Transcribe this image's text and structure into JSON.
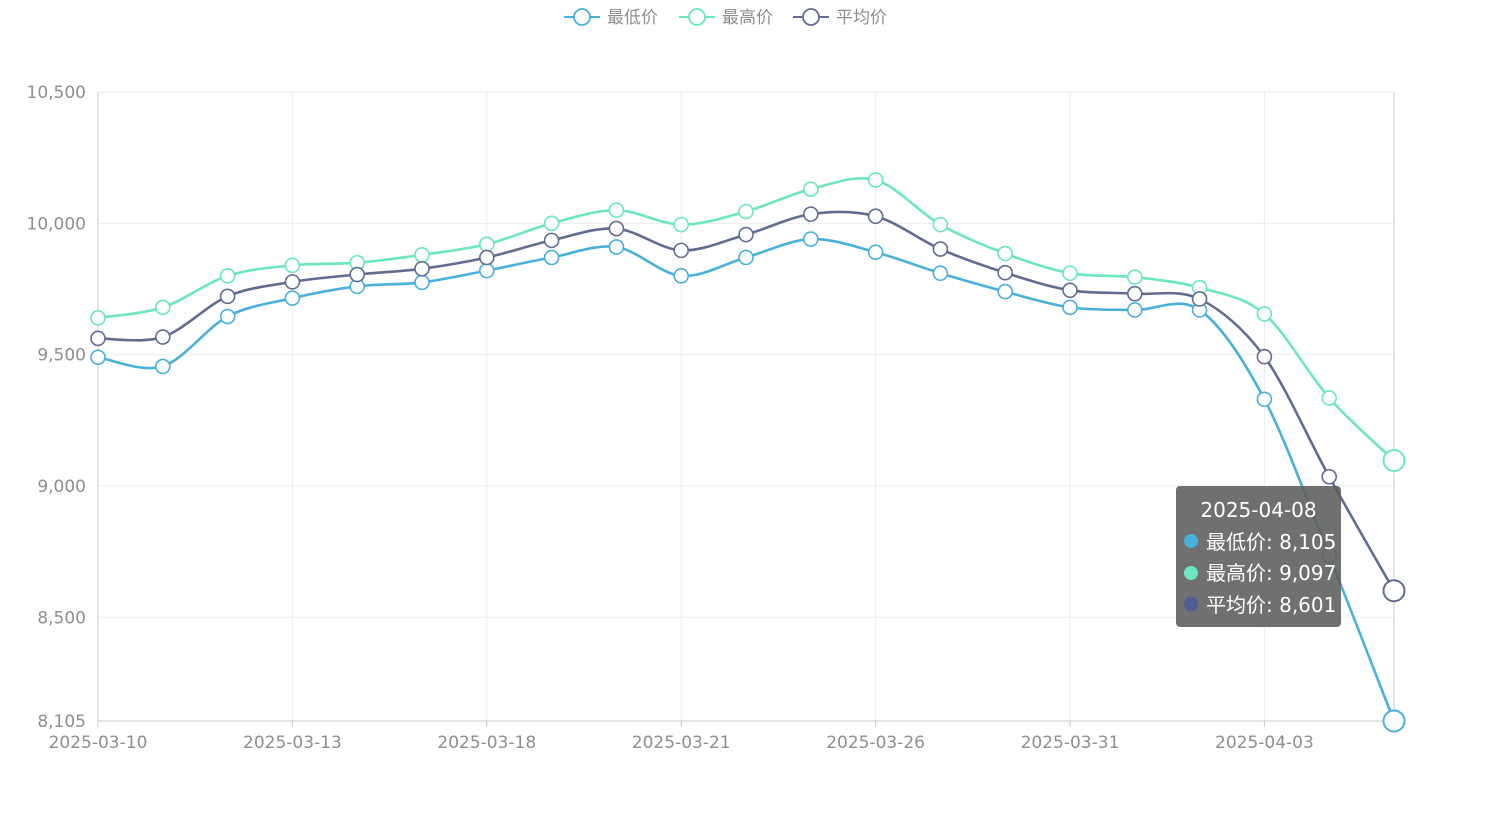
{
  "chart_data": {
    "type": "line",
    "smooth": true,
    "legend_position": "top-center",
    "grid": true,
    "x": [
      "2025-03-10",
      "2025-03-11",
      "2025-03-12",
      "2025-03-13",
      "2025-03-14",
      "2025-03-17",
      "2025-03-18",
      "2025-03-19",
      "2025-03-20",
      "2025-03-21",
      "2025-03-24",
      "2025-03-25",
      "2025-03-26",
      "2025-03-27",
      "2025-03-28",
      "2025-03-31",
      "2025-04-01",
      "2025-04-02",
      "2025-04-03",
      "2025-04-07",
      "2025-04-08"
    ],
    "x_tick_labels": [
      "2025-03-10",
      "2025-03-13",
      "2025-03-18",
      "2025-03-21",
      "2025-03-26",
      "2025-03-31",
      "2025-04-03"
    ],
    "x_tick_every": 3,
    "ylim": [
      8105,
      10500
    ],
    "y_ticks": [
      8105,
      8500,
      9000,
      9500,
      10000,
      10500
    ],
    "y_tick_labels": [
      "8,105",
      "8,500",
      "9,000",
      "9,500",
      "10,000",
      "10,500"
    ],
    "series": [
      {
        "name": "最低价",
        "color": "#4ab0d9",
        "values": [
          9490,
          9455,
          9645,
          9715,
          9760,
          9775,
          9820,
          9870,
          9910,
          9800,
          9870,
          9940,
          9890,
          9810,
          9740,
          9680,
          9670,
          9670,
          9330,
          8735,
          8105
        ]
      },
      {
        "name": "最高价",
        "color": "#6be6c1",
        "values": [
          9640,
          9680,
          9800,
          9840,
          9850,
          9880,
          9920,
          10000,
          10050,
          9995,
          10045,
          10130,
          10165,
          9995,
          9885,
          9810,
          9795,
          9755,
          9655,
          9335,
          9097
        ]
      },
      {
        "name": "平均价",
        "color": "#626c91",
        "values": [
          9562,
          9567,
          9722,
          9777,
          9805,
          9827,
          9870,
          9935,
          9980,
          9897,
          9957,
          10035,
          10027,
          9902,
          9812,
          9745,
          9732,
          9712,
          9492,
          9035,
          8601
        ]
      }
    ]
  },
  "tooltip": {
    "title": "2025-04-08",
    "rows": [
      {
        "label": "最低价: 8,105",
        "color": "#4ab0d9"
      },
      {
        "label": "最高价: 9,097",
        "color": "#6be6c1"
      },
      {
        "label": "平均价: 8,601",
        "color": "#515b95"
      }
    ]
  }
}
